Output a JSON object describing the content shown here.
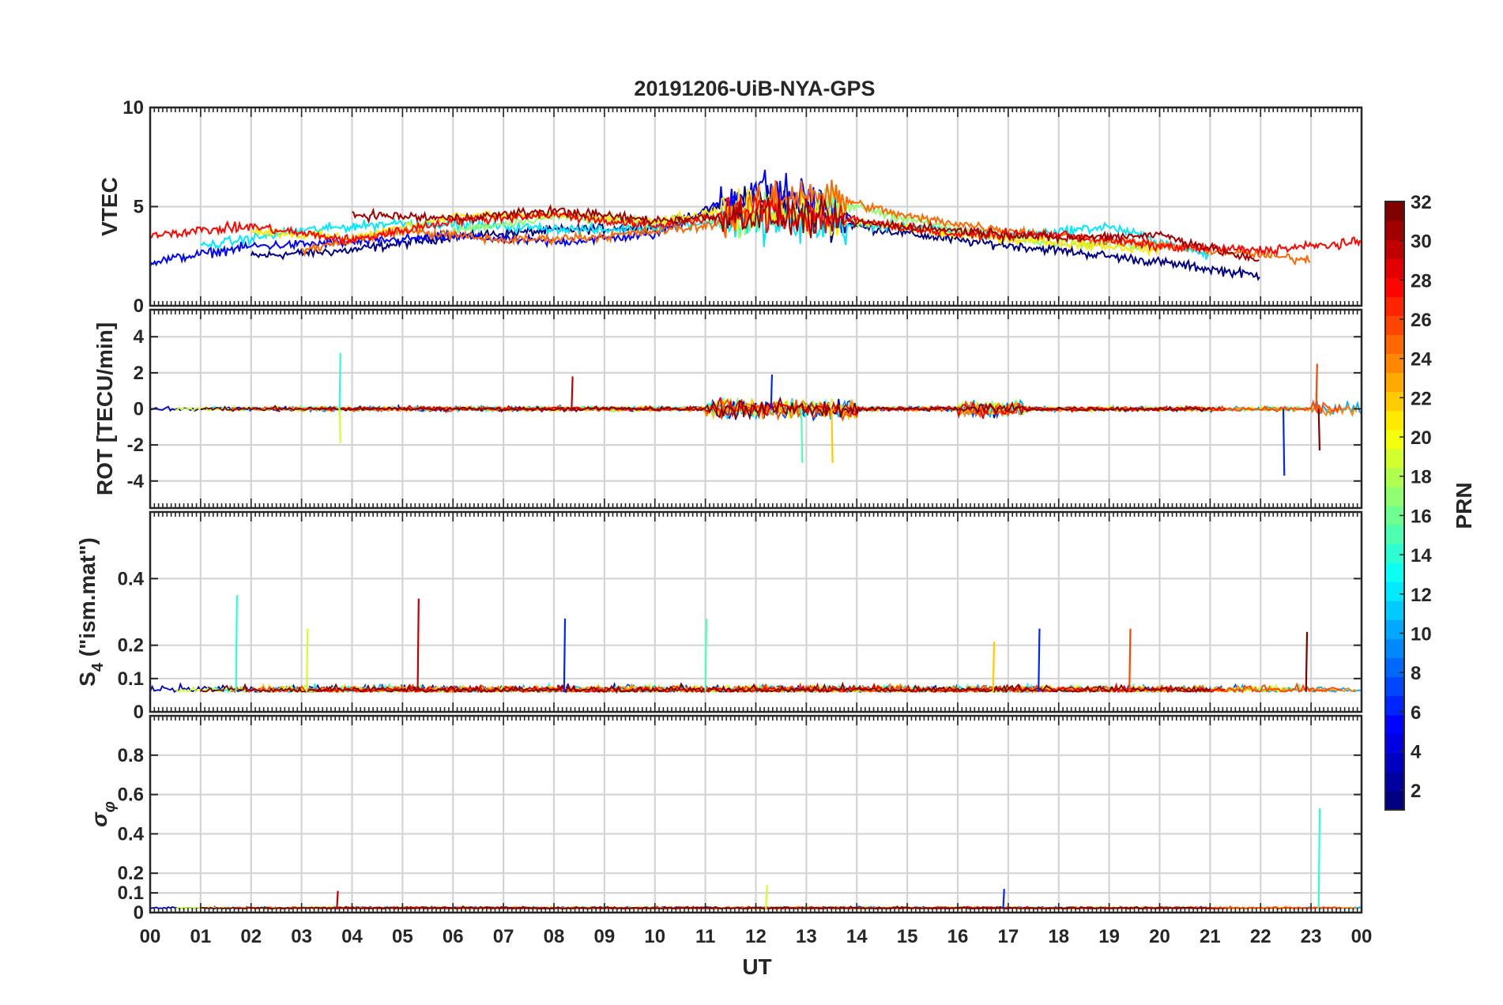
{
  "chart_data": [
    {
      "type": "line",
      "title": "20191206-UiB-NYA-GPS",
      "ylabel": "VTEC",
      "ylim": [
        0,
        10
      ],
      "yticks": [
        "0",
        "5",
        "10"
      ],
      "grid": true,
      "approx_series": [
        {
          "prn": 1,
          "x": [
            2.0,
            4.0,
            6.0,
            8.0,
            10.0,
            12.0,
            14.0,
            16.0,
            18.0,
            20.0,
            22.0
          ],
          "y": [
            2.5,
            2.8,
            3.5,
            3.8,
            4.0,
            5.5,
            4.0,
            3.3,
            2.8,
            2.2,
            1.5
          ]
        },
        {
          "prn": 5,
          "x": [
            0.0,
            2.0,
            4.0,
            6.0,
            8.0,
            10.0,
            12.0,
            13.0,
            14.0
          ],
          "y": [
            2.2,
            3.0,
            3.2,
            3.5,
            3.2,
            3.6,
            6.0,
            5.5,
            4.2
          ]
        },
        {
          "prn": 12,
          "x": [
            1.0,
            3.0,
            5.0,
            7.0,
            9.0,
            11.0,
            15.0,
            17.0,
            19.0,
            21.0
          ],
          "y": [
            3.0,
            3.8,
            4.2,
            4.0,
            3.8,
            4.2,
            4.0,
            3.5,
            4.0,
            2.5
          ]
        },
        {
          "prn": 17,
          "x": [
            6.0,
            8.0,
            10.0,
            12.0,
            14.0,
            16.0,
            18.0,
            20.0
          ],
          "y": [
            3.8,
            4.5,
            4.2,
            4.6,
            5.0,
            3.8,
            3.2,
            3.0
          ]
        },
        {
          "prn": 21,
          "x": [
            2.0,
            4.0,
            6.0,
            8.0,
            10.0,
            12.0,
            14.0,
            16.0,
            18.0,
            20.0
          ],
          "y": [
            3.8,
            3.4,
            4.5,
            4.6,
            4.2,
            5.0,
            4.2,
            3.6,
            3.2,
            2.8
          ]
        },
        {
          "prn": 25,
          "x": [
            3.0,
            5.0,
            7.0,
            9.0,
            11.0,
            13.0,
            15.0,
            17.0,
            19.0,
            21.0,
            23.0
          ],
          "y": [
            2.8,
            3.8,
            3.3,
            3.5,
            4.0,
            5.8,
            4.5,
            3.8,
            3.3,
            2.8,
            2.3
          ]
        },
        {
          "prn": 28,
          "x": [
            0.0,
            2.0,
            4.0,
            6.0,
            8.0,
            10.0,
            12.0,
            14.0,
            16.0,
            18.0,
            20.0,
            22.0,
            24.0
          ],
          "y": [
            3.6,
            4.0,
            3.3,
            4.3,
            4.6,
            4.0,
            4.8,
            4.3,
            3.6,
            3.6,
            3.0,
            2.8,
            3.2
          ]
        },
        {
          "prn": 31,
          "x": [
            4.0,
            6.0,
            8.0,
            10.0,
            12.0,
            14.0,
            16.0,
            18.0,
            20.0,
            22.0
          ],
          "y": [
            4.6,
            4.4,
            4.8,
            4.3,
            4.6,
            4.2,
            3.8,
            3.4,
            3.6,
            2.2
          ]
        }
      ]
    },
    {
      "type": "line",
      "ylabel": "ROT [TECU/min]",
      "ylim": [
        -5.5,
        5.5
      ],
      "yticks": [
        "-4",
        "-2",
        "0",
        "2",
        "4"
      ],
      "grid": true,
      "spikes": [
        {
          "x": 3.75,
          "y": 3.1
        },
        {
          "x": 3.75,
          "y": -1.9
        },
        {
          "x": 8.35,
          "y": 1.8
        },
        {
          "x": 12.3,
          "y": 1.9
        },
        {
          "x": 12.9,
          "y": -3.0
        },
        {
          "x": 13.5,
          "y": -3.0
        },
        {
          "x": 22.45,
          "y": -3.7
        },
        {
          "x": 23.1,
          "y": 2.5
        },
        {
          "x": 23.15,
          "y": -2.3
        }
      ]
    },
    {
      "type": "line",
      "ylabel": "S_4 (\"ism.mat\")",
      "ylim": [
        0,
        0.6
      ],
      "yticks": [
        "0",
        "0.1",
        "0.2",
        "0.4"
      ],
      "grid": true,
      "spikes": [
        {
          "x": 1.7,
          "y": 0.35
        },
        {
          "x": 3.1,
          "y": 0.25
        },
        {
          "x": 5.3,
          "y": 0.34
        },
        {
          "x": 8.2,
          "y": 0.28
        },
        {
          "x": 11.0,
          "y": 0.28
        },
        {
          "x": 16.7,
          "y": 0.21
        },
        {
          "x": 17.6,
          "y": 0.25
        },
        {
          "x": 19.4,
          "y": 0.25
        },
        {
          "x": 22.9,
          "y": 0.24
        }
      ]
    },
    {
      "type": "line",
      "ylabel": "σ_φ",
      "ylim": [
        0,
        1
      ],
      "yticks": [
        "0",
        "0.1",
        "0.2",
        "0.4",
        "0.6",
        "0.8"
      ],
      "grid": true,
      "spikes": [
        {
          "x": 23.15,
          "y": 0.53
        },
        {
          "x": 12.2,
          "y": 0.14
        },
        {
          "x": 3.7,
          "y": 0.11
        },
        {
          "x": 16.9,
          "y": 0.12
        }
      ]
    }
  ],
  "xaxis": {
    "xlabel": "UT",
    "xlim": [
      0,
      24
    ],
    "tick_labels": [
      "00",
      "01",
      "02",
      "03",
      "04",
      "05",
      "06",
      "07",
      "08",
      "09",
      "10",
      "11",
      "12",
      "13",
      "14",
      "15",
      "16",
      "17",
      "18",
      "19",
      "20",
      "21",
      "22",
      "23",
      "00"
    ]
  },
  "colorbar": {
    "label": "PRN",
    "range": [
      1,
      32
    ],
    "tick_labels": [
      "2",
      "4",
      "6",
      "8",
      "10",
      "12",
      "14",
      "16",
      "18",
      "20",
      "22",
      "24",
      "26",
      "28",
      "30",
      "32"
    ]
  }
}
